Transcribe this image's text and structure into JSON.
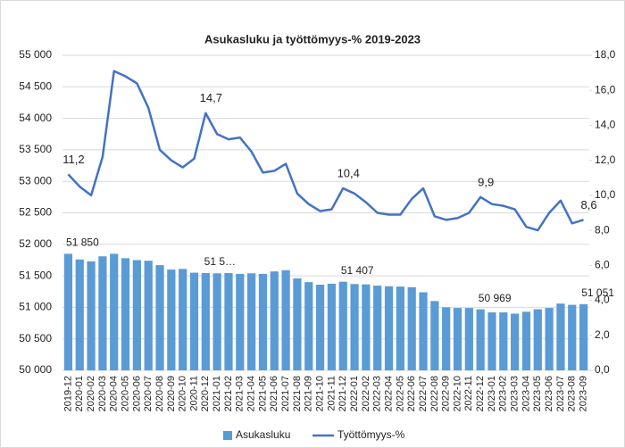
{
  "chart_data": {
    "type": "bar-line",
    "title": "Asukasluku ja työttömyys-% 2019-2023",
    "categories": [
      "2019-12",
      "2020-01",
      "2020-02",
      "2020-03",
      "2020-04",
      "2020-05",
      "2020-06",
      "2020-07",
      "2020-08",
      "2020-09",
      "2020-10",
      "2020-11",
      "2020-12",
      "2021-01",
      "2021-02",
      "2021-03",
      "2021-04",
      "2021-05",
      "2021-06",
      "2021-07",
      "2021-08",
      "2021-09",
      "2021-10",
      "2021-11",
      "2021-12",
      "2022-01",
      "2022-02",
      "2022-03",
      "2022-04",
      "2022-05",
      "2022-06",
      "2022-07",
      "2022-08",
      "2022-09",
      "2022-10",
      "2022-11",
      "2022-12",
      "2023-01",
      "2023-02",
      "2023-03",
      "2023-04",
      "2023-05",
      "2023-06",
      "2023-07",
      "2023-08",
      "2023-09"
    ],
    "series": [
      {
        "name": "Asukasluku",
        "type": "bar",
        "color": "#5b9bd5",
        "values": [
          51850,
          51760,
          51730,
          51810,
          51850,
          51780,
          51750,
          51740,
          51670,
          51600,
          51610,
          51550,
          51545,
          51540,
          51545,
          51530,
          51540,
          51530,
          51570,
          51590,
          51460,
          51400,
          51360,
          51375,
          51407,
          51370,
          51365,
          51345,
          51335,
          51330,
          51320,
          51240,
          51100,
          51000,
          50990,
          50990,
          50969,
          50920,
          50920,
          50900,
          50930,
          50970,
          50990,
          51060,
          51040,
          51051
        ],
        "value_labels": [
          "51 850",
          null,
          null,
          null,
          null,
          null,
          null,
          null,
          null,
          null,
          null,
          null,
          "51 5…",
          null,
          null,
          null,
          null,
          null,
          null,
          null,
          null,
          null,
          null,
          null,
          "51 407",
          null,
          null,
          null,
          null,
          null,
          null,
          null,
          null,
          null,
          null,
          null,
          "50 969",
          null,
          null,
          null,
          null,
          null,
          null,
          null,
          null,
          "51 051"
        ]
      },
      {
        "name": "Työttömyys-%",
        "type": "line",
        "axis": "y2",
        "color": "#4472c4",
        "values": [
          11.2,
          10.5,
          10.0,
          12.2,
          17.1,
          16.8,
          16.4,
          15.0,
          12.6,
          12.0,
          11.6,
          12.1,
          14.7,
          13.5,
          13.2,
          13.3,
          12.5,
          11.3,
          11.4,
          11.8,
          10.1,
          9.5,
          9.1,
          9.2,
          10.4,
          10.1,
          9.6,
          9.0,
          8.9,
          8.9,
          9.8,
          10.4,
          8.8,
          8.6,
          8.7,
          9.0,
          9.9,
          9.5,
          9.4,
          9.2,
          8.2,
          8.0,
          9.0,
          9.7,
          8.4,
          8.6
        ],
        "value_labels": [
          "11,2",
          null,
          null,
          null,
          null,
          null,
          null,
          null,
          null,
          null,
          null,
          null,
          "14,7",
          null,
          null,
          null,
          null,
          null,
          null,
          null,
          null,
          null,
          null,
          null,
          "10,4",
          null,
          null,
          null,
          null,
          null,
          null,
          null,
          null,
          null,
          null,
          null,
          "9,9",
          null,
          null,
          null,
          null,
          null,
          null,
          null,
          null,
          "8,6"
        ]
      }
    ],
    "ylim": [
      50000,
      55000
    ],
    "yticks": [
      {
        "value": 50000,
        "label": "50 000"
      },
      {
        "value": 50500,
        "label": "50 500"
      },
      {
        "value": 51000,
        "label": "51 000"
      },
      {
        "value": 51500,
        "label": "51 500"
      },
      {
        "value": 52000,
        "label": "52 000"
      },
      {
        "value": 52500,
        "label": "52 500"
      },
      {
        "value": 53000,
        "label": "53 000"
      },
      {
        "value": 53500,
        "label": "53 500"
      },
      {
        "value": 54000,
        "label": "54 000"
      },
      {
        "value": 54500,
        "label": "54 500"
      },
      {
        "value": 55000,
        "label": "55 000"
      }
    ],
    "y2lim": [
      0,
      18
    ],
    "y2ticks": [
      {
        "value": 0,
        "label": "0,0"
      },
      {
        "value": 2,
        "label": "2,0"
      },
      {
        "value": 4,
        "label": "4,0"
      },
      {
        "value": 6,
        "label": "6,0"
      },
      {
        "value": 8,
        "label": "8,0"
      },
      {
        "value": 10,
        "label": "10,0"
      },
      {
        "value": 12,
        "label": "12,0"
      },
      {
        "value": 14,
        "label": "14,0"
      },
      {
        "value": 16,
        "label": "16,0"
      },
      {
        "value": 18,
        "label": "18,0"
      }
    ],
    "legend": "bottom"
  }
}
